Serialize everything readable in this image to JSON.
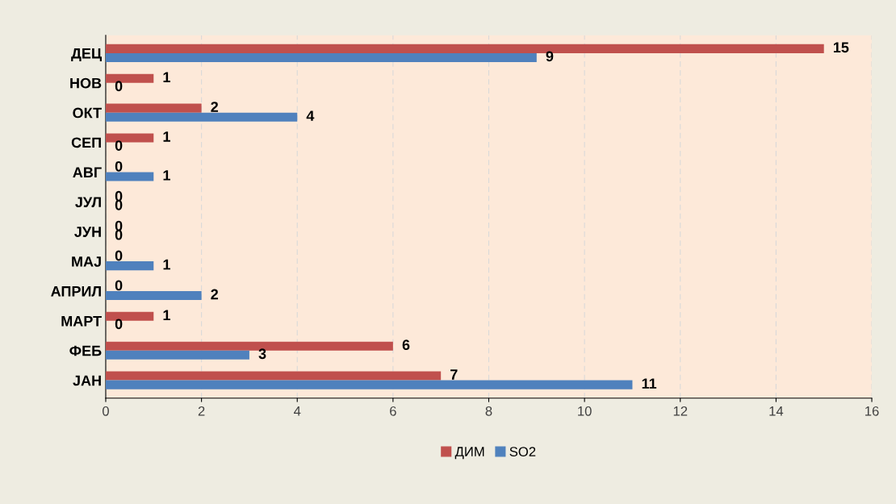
{
  "chart_data": {
    "type": "bar",
    "orientation": "horizontal",
    "categories": [
      "ДЕЦ",
      "НОВ",
      "ОКТ",
      "СЕП",
      "АВГ",
      "ЈУЛ",
      "ЈУН",
      "МАЈ",
      "АПРИЛ",
      "МАРТ",
      "ФЕБ",
      "ЈАН"
    ],
    "series": [
      {
        "name": "ДИМ",
        "color": "#c0504d",
        "values": [
          15,
          1,
          2,
          1,
          0,
          0,
          0,
          0,
          0,
          1,
          6,
          7
        ]
      },
      {
        "name": "SO2",
        "color": "#4f81bd",
        "values": [
          9,
          0,
          4,
          0,
          1,
          0,
          0,
          1,
          2,
          0,
          3,
          11
        ]
      }
    ],
    "xlim": [
      0,
      16
    ],
    "xticks": [
      0,
      2,
      4,
      6,
      8,
      10,
      12,
      14,
      16
    ],
    "grid": "x",
    "legend": "bottom",
    "data_labels": true
  }
}
